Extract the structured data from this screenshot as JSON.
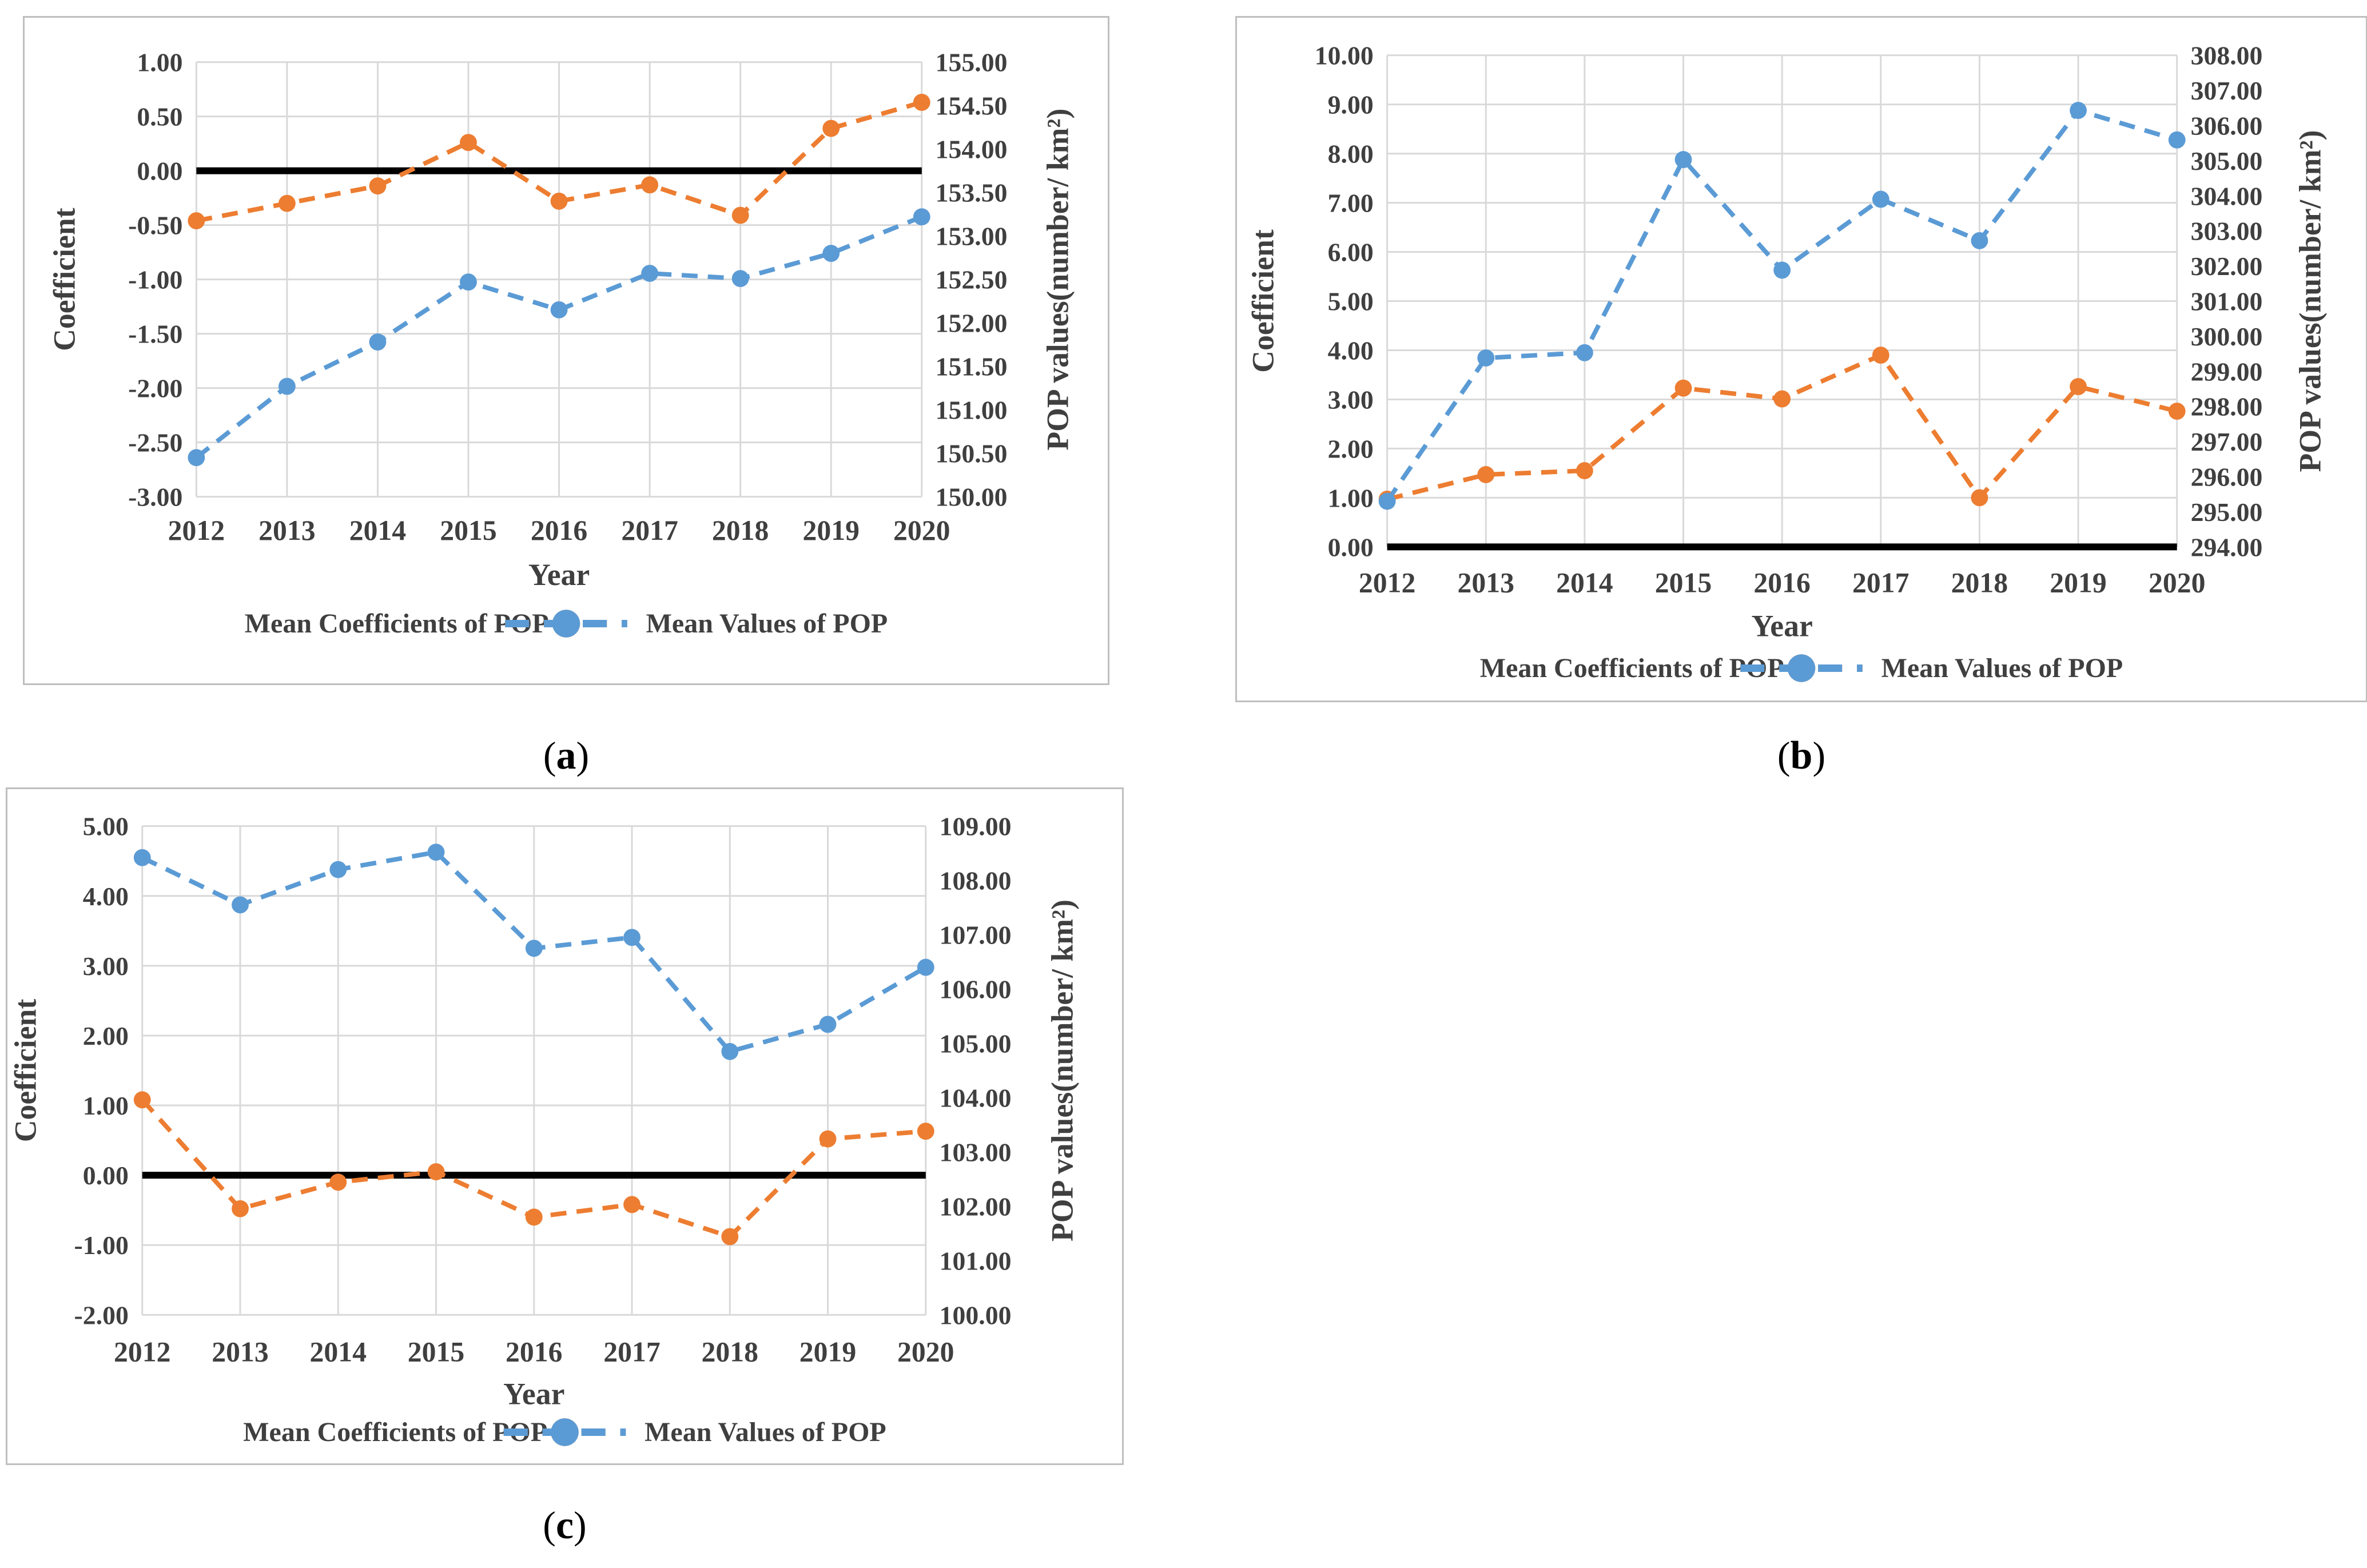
{
  "colors": {
    "coefficient_series": "#ED7D31",
    "pop_series": "#5B9BD5",
    "gridline": "#D9D9D9",
    "axis_text": "#3F3F3F",
    "zero_line": "#000000",
    "box_border": "#BFBFBF",
    "background": "#FFFFFF"
  },
  "chart_data": [
    {
      "type": "line",
      "caption_open": "(",
      "caption_letter": "a",
      "caption_close": ")",
      "x": [
        "2012",
        "2013",
        "2014",
        "2015",
        "2016",
        "2017",
        "2018",
        "2019",
        "2020"
      ],
      "xlabel": "Year",
      "left_axis": {
        "title": "Coefficient",
        "min": -3.0,
        "max": 1.0,
        "step": 0.5
      },
      "right_axis": {
        "title": "POP values(number/ km²)",
        "min": 150.0,
        "max": 155.0,
        "step": 0.5
      },
      "grid": true,
      "legend_position": "bottom",
      "zero_line": 0.0,
      "series": [
        {
          "name": "Mean Coefficients of POP",
          "axis": "left",
          "color": "#ED7D31",
          "values": [
            -0.46,
            -0.3,
            -0.14,
            0.26,
            -0.28,
            -0.13,
            -0.41,
            0.39,
            0.63
          ]
        },
        {
          "name": "Mean Values of POP",
          "axis": "right",
          "color": "#5B9BD5",
          "values": [
            150.45,
            151.27,
            151.78,
            152.47,
            152.15,
            152.57,
            152.51,
            152.8,
            153.22
          ]
        }
      ]
    },
    {
      "type": "line",
      "caption_open": "(",
      "caption_letter": "b",
      "caption_close": ")",
      "x": [
        "2012",
        "2013",
        "2014",
        "2015",
        "2016",
        "2017",
        "2018",
        "2019",
        "2020"
      ],
      "xlabel": "Year",
      "left_axis": {
        "title": "Coefficient",
        "min": 0.0,
        "max": 10.0,
        "step": 1.0
      },
      "right_axis": {
        "title": "POP values(number/ km²)",
        "min": 294.0,
        "max": 308.0,
        "step": 1.0
      },
      "grid": true,
      "legend_position": "bottom",
      "zero_line": 0.0,
      "series": [
        {
          "name": "Mean Coefficients of POP",
          "axis": "left",
          "color": "#ED7D31",
          "values": [
            0.97,
            1.47,
            1.55,
            3.23,
            3.01,
            3.9,
            1.0,
            3.26,
            2.76
          ]
        },
        {
          "name": "Mean Values of POP",
          "axis": "right",
          "color": "#5B9BD5",
          "values": [
            295.3,
            299.38,
            299.53,
            305.03,
            301.88,
            303.9,
            302.72,
            306.43,
            305.59
          ]
        }
      ]
    },
    {
      "type": "line",
      "caption_open": "(",
      "caption_letter": "c",
      "caption_close": ")",
      "x": [
        "2012",
        "2013",
        "2014",
        "2015",
        "2016",
        "2017",
        "2018",
        "2019",
        "2020"
      ],
      "xlabel": "Year",
      "left_axis": {
        "title": "Coefficient",
        "min": -2.0,
        "max": 5.0,
        "step": 1.0
      },
      "right_axis": {
        "title": "POP values(number/ km²)",
        "min": 100.0,
        "max": 109.0,
        "step": 1.0
      },
      "grid": true,
      "legend_position": "bottom",
      "zero_line": 0.0,
      "series": [
        {
          "name": "Mean Coefficients of POP",
          "axis": "left",
          "color": "#ED7D31",
          "values": [
            1.08,
            -0.48,
            -0.1,
            0.05,
            -0.6,
            -0.42,
            -0.88,
            0.52,
            0.63
          ]
        },
        {
          "name": "Mean Values of POP",
          "axis": "right",
          "color": "#5B9BD5",
          "values": [
            108.42,
            107.55,
            108.2,
            108.52,
            106.75,
            106.95,
            104.85,
            105.35,
            106.4
          ]
        }
      ]
    }
  ]
}
